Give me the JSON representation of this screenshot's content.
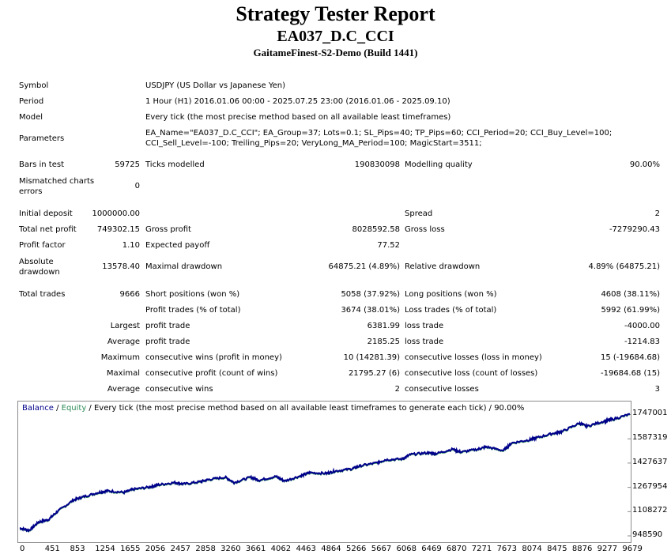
{
  "header": {
    "title": "Strategy Tester Report",
    "ea_name": "EA037_D.C_CCI",
    "server": "GaitameFinest-S2-Demo (Build 1441)"
  },
  "info": {
    "symbol_label": "Symbol",
    "symbol": "USDJPY (US Dollar vs Japanese Yen)",
    "period_label": "Period",
    "period": "1 Hour (H1) 2016.01.06 00:00 - 2025.07.25 23:00 (2016.01.06 - 2025.09.10)",
    "model_label": "Model",
    "model": "Every tick (the most precise method based on all available least timeframes)",
    "parameters_label": "Parameters",
    "parameters_line1": "EA_Name=\"EA037_D.C_CCI\"; EA_Group=37; Lots=0.1; SL_Pips=40; TP_Pips=60; CCI_Period=20; CCI_Buy_Level=100;",
    "parameters_line2": "CCI_Sell_Level=-100; Treiling_Pips=20; VeryLong_MA_Period=100; MagicStart=3511;"
  },
  "bars": {
    "bars_label": "Bars in test",
    "bars": "59725",
    "ticks_label": "Ticks modelled",
    "ticks": "190830098",
    "quality_label": "Modelling quality",
    "quality": "90.00%",
    "mismatch_label": "Mismatched charts errors",
    "mismatch": "0"
  },
  "money": {
    "initial_deposit_label": "Initial deposit",
    "initial_deposit": "1000000.00",
    "spread_label": "Spread",
    "spread": "2",
    "net_profit_label": "Total net profit",
    "net_profit": "749302.15",
    "gross_profit_label": "Gross profit",
    "gross_profit": "8028592.58",
    "gross_loss_label": "Gross loss",
    "gross_loss": "-7279290.43",
    "profit_factor_label": "Profit factor",
    "profit_factor": "1.10",
    "expected_payoff_label": "Expected payoff",
    "expected_payoff": "77.52",
    "abs_dd_label": "Absolute drawdown",
    "abs_dd": "13578.40",
    "max_dd_label": "Maximal drawdown",
    "max_dd": "64875.21 (4.89%)",
    "rel_dd_label": "Relative drawdown",
    "rel_dd": "4.89% (64875.21)"
  },
  "trades": {
    "total_label": "Total trades",
    "total": "9666",
    "short_label": "Short positions (won %)",
    "short": "5058 (37.92%)",
    "long_label": "Long positions (won %)",
    "long": "4608 (38.11%)",
    "profit_trades_label": "Profit trades (% of total)",
    "profit_trades": "3674 (38.01%)",
    "loss_trades_label": "Loss trades (% of total)",
    "loss_trades": "5992 (61.99%)",
    "rows": [
      {
        "prefix": "Largest",
        "l_label": "profit trade",
        "l_val": "6381.99",
        "r_label": "loss trade",
        "r_val": "-4000.00"
      },
      {
        "prefix": "Average",
        "l_label": "profit trade",
        "l_val": "2185.25",
        "r_label": "loss trade",
        "r_val": "-1214.83"
      },
      {
        "prefix": "Maximum",
        "l_label": "consecutive wins (profit in money)",
        "l_val": "10 (14281.39)",
        "r_label": "consecutive losses (loss in money)",
        "r_val": "15 (-19684.68)"
      },
      {
        "prefix": "Maximal",
        "l_label": "consecutive profit (count of wins)",
        "l_val": "21795.27 (6)",
        "r_label": "consecutive loss (count of losses)",
        "r_val": "-19684.68 (15)"
      },
      {
        "prefix": "Average",
        "l_label": "consecutive wins",
        "l_val": "2",
        "r_label": "consecutive losses",
        "r_val": "3"
      }
    ]
  },
  "chart_data": {
    "type": "line",
    "legend_balance": "Balance",
    "legend_sep": " / ",
    "legend_equity": "Equity",
    "legend_rest": " / Every tick (the most precise method based on all available least timeframes to generate each tick) / 90.00%",
    "series_colors": {
      "balance": "#00008b",
      "equity": "#2e8b57"
    },
    "y_ticks": [
      "1747001",
      "1587319",
      "1427637",
      "1267954",
      "1108272",
      "948590"
    ],
    "y_tick_values": [
      1747001,
      1587319,
      1427637,
      1267954,
      1108272,
      948590
    ],
    "x_ticks": [
      "0",
      "451",
      "853",
      "1254",
      "1655",
      "2056",
      "2457",
      "2858",
      "3260",
      "3661",
      "4062",
      "4463",
      "4864",
      "5266",
      "5667",
      "6068",
      "6469",
      "6870",
      "7271",
      "7673",
      "8074",
      "8475",
      "8876",
      "9277",
      "9679"
    ],
    "ylim": [
      948590,
      1760000
    ],
    "xlim": [
      0,
      9666
    ],
    "x": [
      0,
      150,
      300,
      451,
      600,
      853,
      1000,
      1254,
      1400,
      1655,
      1800,
      2056,
      2200,
      2457,
      2600,
      2858,
      3000,
      3260,
      3400,
      3661,
      3800,
      4062,
      4200,
      4463,
      4600,
      4864,
      5000,
      5266,
      5400,
      5667,
      5800,
      6068,
      6200,
      6469,
      6600,
      6870,
      7000,
      7271,
      7400,
      7673,
      7800,
      8074,
      8200,
      8475,
      8600,
      8876,
      9000,
      9277,
      9400,
      9679
    ],
    "balance": [
      1000000,
      985000,
      1040000,
      1055000,
      1110000,
      1185000,
      1205000,
      1235000,
      1245000,
      1235000,
      1255000,
      1270000,
      1285000,
      1300000,
      1290000,
      1305000,
      1320000,
      1335000,
      1300000,
      1335000,
      1315000,
      1340000,
      1310000,
      1345000,
      1365000,
      1360000,
      1375000,
      1390000,
      1410000,
      1430000,
      1450000,
      1455000,
      1485000,
      1495000,
      1490000,
      1520000,
      1500000,
      1520000,
      1535000,
      1510000,
      1560000,
      1580000,
      1595000,
      1625000,
      1635000,
      1690000,
      1670000,
      1705000,
      1715000,
      1750000
    ]
  }
}
